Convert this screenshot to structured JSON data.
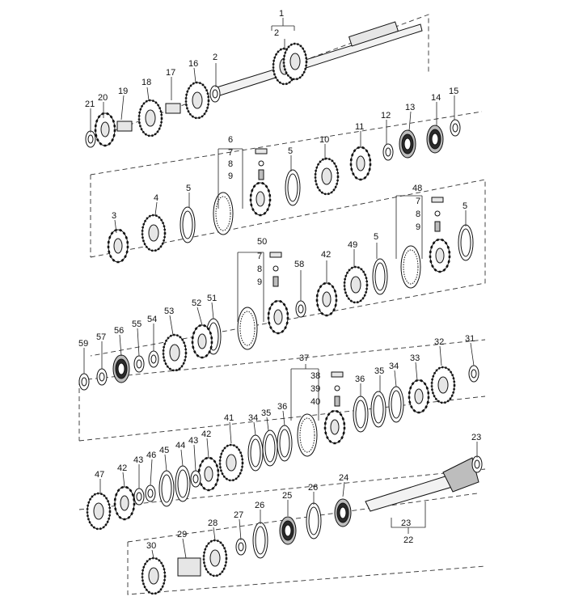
{
  "callouts": [
    {
      "id": "c-1",
      "text": "1"
    },
    {
      "id": "c-2a",
      "text": "2"
    },
    {
      "id": "c-2b",
      "text": "2"
    },
    {
      "id": "c-16",
      "text": "16"
    },
    {
      "id": "c-17",
      "text": "17"
    },
    {
      "id": "c-18",
      "text": "18"
    },
    {
      "id": "c-19",
      "text": "19"
    },
    {
      "id": "c-20",
      "text": "20"
    },
    {
      "id": "c-21",
      "text": "21"
    },
    {
      "id": "c-15",
      "text": "15"
    },
    {
      "id": "c-14",
      "text": "14"
    },
    {
      "id": "c-13",
      "text": "13"
    },
    {
      "id": "c-12",
      "text": "12"
    },
    {
      "id": "c-11",
      "text": "11"
    },
    {
      "id": "c-10",
      "text": "10"
    },
    {
      "id": "c-5a",
      "text": "5"
    },
    {
      "id": "c-6",
      "text": "6"
    },
    {
      "id": "c-7a",
      "text": "7"
    },
    {
      "id": "c-8a",
      "text": "8"
    },
    {
      "id": "c-9a",
      "text": "9"
    },
    {
      "id": "c-3",
      "text": "3"
    },
    {
      "id": "c-4",
      "text": "4"
    },
    {
      "id": "c-5b",
      "text": "5"
    },
    {
      "id": "c-48",
      "text": "48"
    },
    {
      "id": "c-7b",
      "text": "7"
    },
    {
      "id": "c-8b",
      "text": "8"
    },
    {
      "id": "c-9b",
      "text": "9"
    },
    {
      "id": "c-5c",
      "text": "5"
    },
    {
      "id": "c-50",
      "text": "50"
    },
    {
      "id": "c-7c",
      "text": "7"
    },
    {
      "id": "c-8c",
      "text": "8"
    },
    {
      "id": "c-9c",
      "text": "9"
    },
    {
      "id": "c-58",
      "text": "58"
    },
    {
      "id": "c-42a",
      "text": "42"
    },
    {
      "id": "c-49",
      "text": "49"
    },
    {
      "id": "c-5d",
      "text": "5"
    },
    {
      "id": "c-53",
      "text": "53"
    },
    {
      "id": "c-52",
      "text": "52"
    },
    {
      "id": "c-51",
      "text": "51"
    },
    {
      "id": "c-54",
      "text": "54"
    },
    {
      "id": "c-55",
      "text": "55"
    },
    {
      "id": "c-56",
      "text": "56"
    },
    {
      "id": "c-57",
      "text": "57"
    },
    {
      "id": "c-59",
      "text": "59"
    },
    {
      "id": "c-37",
      "text": "37"
    },
    {
      "id": "c-38",
      "text": "38"
    },
    {
      "id": "c-39",
      "text": "39"
    },
    {
      "id": "c-40",
      "text": "40"
    },
    {
      "id": "c-32",
      "text": "32"
    },
    {
      "id": "c-31",
      "text": "31"
    },
    {
      "id": "c-33",
      "text": "33"
    },
    {
      "id": "c-34a",
      "text": "34"
    },
    {
      "id": "c-35a",
      "text": "35"
    },
    {
      "id": "c-36a",
      "text": "36"
    },
    {
      "id": "c-41",
      "text": "41"
    },
    {
      "id": "c-34b",
      "text": "34"
    },
    {
      "id": "c-35b",
      "text": "35"
    },
    {
      "id": "c-36b",
      "text": "36"
    },
    {
      "id": "c-42b",
      "text": "42"
    },
    {
      "id": "c-43a",
      "text": "43"
    },
    {
      "id": "c-44",
      "text": "44"
    },
    {
      "id": "c-45",
      "text": "45"
    },
    {
      "id": "c-46",
      "text": "46"
    },
    {
      "id": "c-43b",
      "text": "43"
    },
    {
      "id": "c-42c",
      "text": "42"
    },
    {
      "id": "c-47",
      "text": "47"
    },
    {
      "id": "c-23a",
      "text": "23"
    },
    {
      "id": "c-24",
      "text": "24"
    },
    {
      "id": "c-26a",
      "text": "26"
    },
    {
      "id": "c-25",
      "text": "25"
    },
    {
      "id": "c-26b",
      "text": "26"
    },
    {
      "id": "c-27",
      "text": "27"
    },
    {
      "id": "c-28",
      "text": "28"
    },
    {
      "id": "c-29",
      "text": "29"
    },
    {
      "id": "c-30",
      "text": "30"
    },
    {
      "id": "c-23b",
      "text": "23"
    },
    {
      "id": "c-22",
      "text": "22"
    }
  ]
}
